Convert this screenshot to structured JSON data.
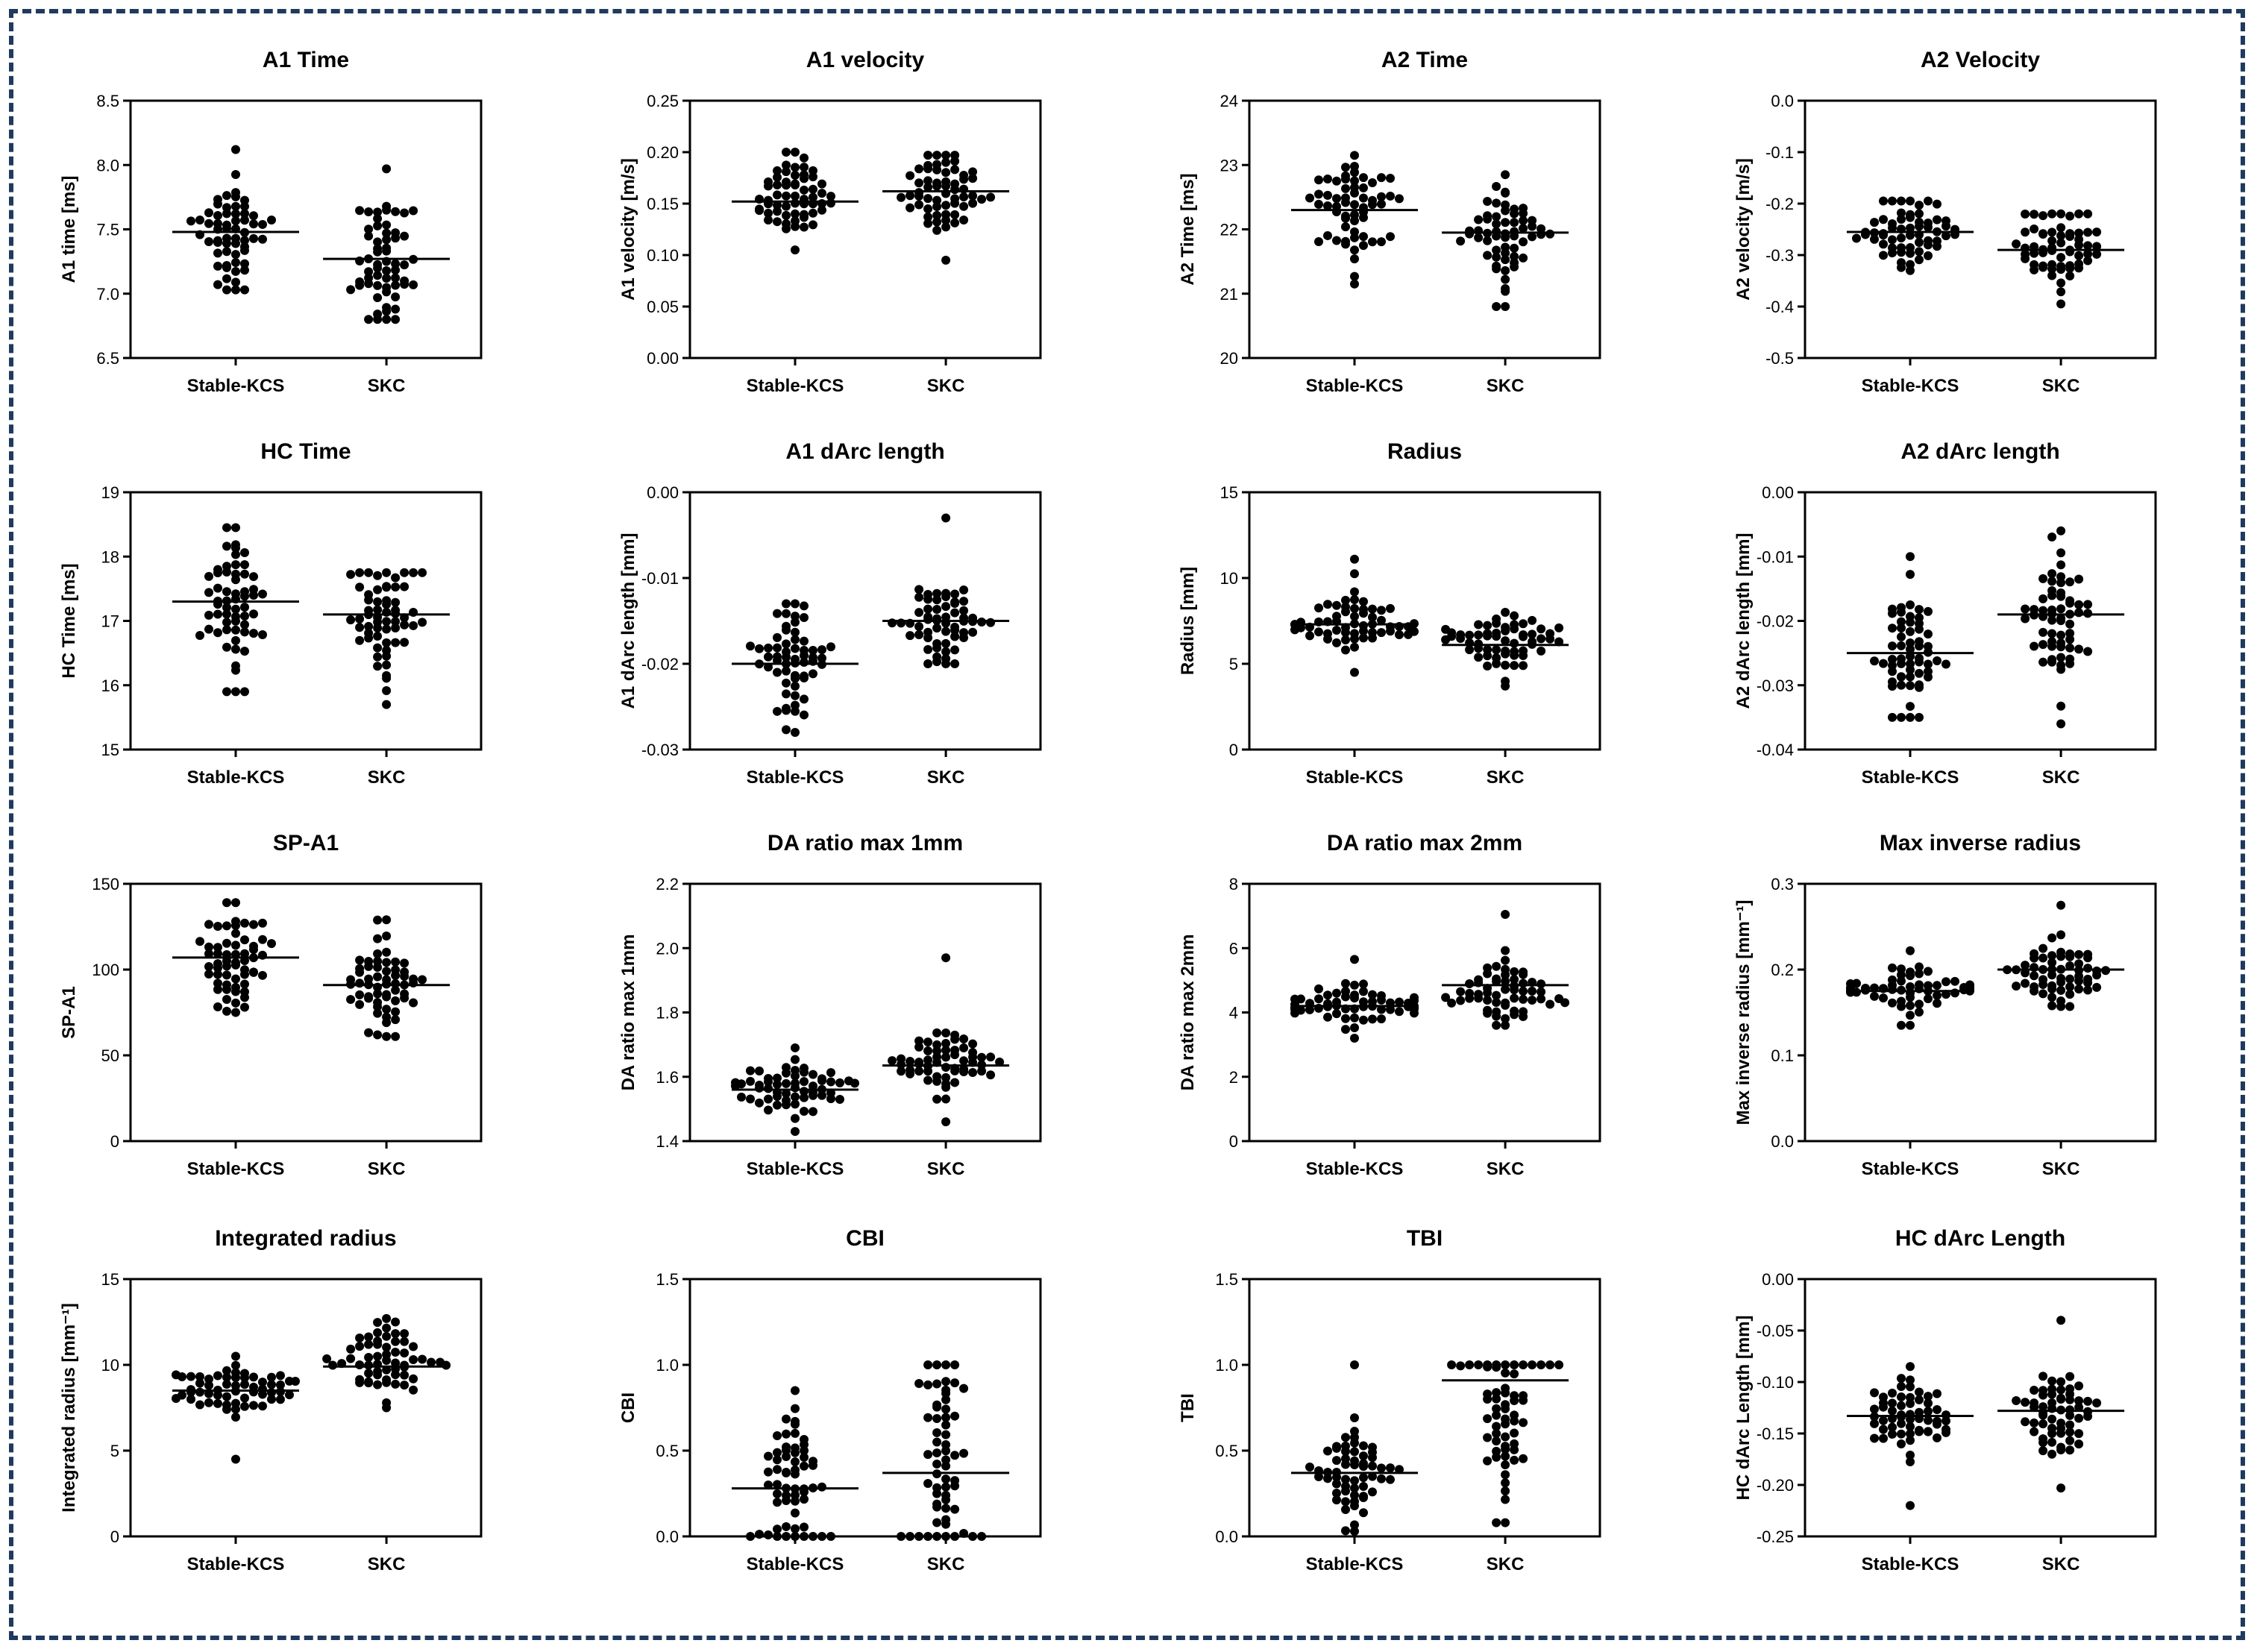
{
  "figure": {
    "border_color": "#1f3a5f",
    "dot_color": "#000000",
    "grid": false,
    "chart_type": "dot plot (scatter)"
  },
  "chart_data": [
    {
      "type": "scatter",
      "title": "A1 Time",
      "ylabel": "A1 time [ms]",
      "categories": [
        "Stable-KCS",
        "SKC"
      ],
      "ylim": [
        6.5,
        8.5
      ],
      "yticks": [
        "6.5",
        "7.0",
        "7.5",
        "8.0",
        "8.5"
      ],
      "series": [
        {
          "name": "Stable-KCS",
          "median": 7.48,
          "center": 7.48,
          "spread": 0.22,
          "min": 7.03,
          "max": 8.12,
          "n": 60
        },
        {
          "name": "SKC",
          "median": 7.27,
          "center": 7.27,
          "spread": 0.25,
          "min": 6.8,
          "max": 7.97,
          "n": 60
        }
      ]
    },
    {
      "type": "scatter",
      "title": "A1 velocity",
      "ylabel": "A1 velocity [m/s]",
      "categories": [
        "Stable-KCS",
        "SKC"
      ],
      "ylim": [
        0.0,
        0.25
      ],
      "yticks": [
        "0.00",
        "0.05",
        "0.10",
        "0.15",
        "0.20",
        "0.25"
      ],
      "series": [
        {
          "name": "Stable-KCS",
          "median": 0.152,
          "center": 0.152,
          "spread": 0.02,
          "min": 0.105,
          "max": 0.2,
          "n": 60
        },
        {
          "name": "SKC",
          "median": 0.162,
          "center": 0.162,
          "spread": 0.02,
          "min": 0.095,
          "max": 0.197,
          "n": 60
        }
      ]
    },
    {
      "type": "scatter",
      "title": "A2 Time",
      "ylabel": "A2 Time [ms]",
      "categories": [
        "Stable-KCS",
        "SKC"
      ],
      "ylim": [
        20,
        24
      ],
      "yticks": [
        "20",
        "21",
        "22",
        "23",
        "24"
      ],
      "series": [
        {
          "name": "Stable-KCS",
          "median": 22.3,
          "center": 22.3,
          "spread": 0.45,
          "min": 21.15,
          "max": 23.15,
          "n": 60
        },
        {
          "name": "SKC",
          "median": 21.95,
          "center": 21.95,
          "spread": 0.42,
          "min": 20.8,
          "max": 22.85,
          "n": 60
        }
      ]
    },
    {
      "type": "scatter",
      "title": "A2 Velocity",
      "ylabel": "A2 velocity [m/s]",
      "categories": [
        "Stable-KCS",
        "SKC"
      ],
      "ylim": [
        -0.5,
        0.0
      ],
      "yticks": [
        "-0.5",
        "-0.4",
        "-0.3",
        "-0.2",
        "-0.1",
        "0.0"
      ],
      "series": [
        {
          "name": "Stable-KCS",
          "median": -0.255,
          "center": -0.255,
          "spread": 0.03,
          "min": -0.33,
          "max": -0.195,
          "n": 60
        },
        {
          "name": "SKC",
          "median": -0.29,
          "center": -0.29,
          "spread": 0.04,
          "min": -0.395,
          "max": -0.22,
          "n": 60
        }
      ]
    },
    {
      "type": "scatter",
      "title": "HC Time",
      "ylabel": "HC Time [ms]",
      "categories": [
        "Stable-KCS",
        "SKC"
      ],
      "ylim": [
        15,
        19
      ],
      "yticks": [
        "15",
        "16",
        "17",
        "18",
        "19"
      ],
      "series": [
        {
          "name": "Stable-KCS",
          "median": 17.3,
          "center": 17.3,
          "spread": 0.5,
          "min": 15.9,
          "max": 18.45,
          "n": 60
        },
        {
          "name": "SKC",
          "median": 17.1,
          "center": 17.1,
          "spread": 0.45,
          "min": 15.7,
          "max": 17.75,
          "n": 60
        }
      ]
    },
    {
      "type": "scatter",
      "title": "A1 dArc length",
      "ylabel": "A1 dArc length [mm]",
      "categories": [
        "Stable-KCS",
        "SKC"
      ],
      "ylim": [
        -0.03,
        0.0
      ],
      "yticks": [
        "-0.03",
        "-0.02",
        "-0.01",
        "0.00"
      ],
      "series": [
        {
          "name": "Stable-KCS",
          "median": -0.02,
          "center": -0.02,
          "spread": 0.003,
          "min": -0.028,
          "max": -0.013,
          "n": 60
        },
        {
          "name": "SKC",
          "median": -0.015,
          "center": -0.015,
          "spread": 0.003,
          "min": -0.02,
          "max": -0.003,
          "n": 60
        }
      ]
    },
    {
      "type": "scatter",
      "title": "Radius",
      "ylabel": "Radius [mm]",
      "categories": [
        "Stable-KCS",
        "SKC"
      ],
      "ylim": [
        0,
        15
      ],
      "yticks": [
        "0",
        "5",
        "10",
        "15"
      ],
      "series": [
        {
          "name": "Stable-KCS",
          "median": 7.3,
          "center": 7.3,
          "spread": 0.9,
          "min": 4.5,
          "max": 11.1,
          "n": 60
        },
        {
          "name": "SKC",
          "median": 6.1,
          "center": 6.1,
          "spread": 0.8,
          "min": 3.7,
          "max": 8.0,
          "n": 60
        }
      ]
    },
    {
      "type": "scatter",
      "title": "A2 dArc length",
      "ylabel": "A2 dArc length [mm]",
      "categories": [
        "Stable-KCS",
        "SKC"
      ],
      "ylim": [
        -0.04,
        0.0
      ],
      "yticks": [
        "-0.04",
        "-0.03",
        "-0.02",
        "-0.01",
        "0.00"
      ],
      "series": [
        {
          "name": "Stable-KCS",
          "median": -0.025,
          "center": -0.025,
          "spread": 0.005,
          "min": -0.035,
          "max": -0.01,
          "n": 60
        },
        {
          "name": "SKC",
          "median": -0.019,
          "center": -0.019,
          "spread": 0.005,
          "min": -0.036,
          "max": -0.006,
          "n": 60
        }
      ]
    },
    {
      "type": "scatter",
      "title": "SP-A1",
      "ylabel": "SP-A1",
      "categories": [
        "Stable-KCS",
        "SKC"
      ],
      "ylim": [
        0,
        150
      ],
      "yticks": [
        "0",
        "50",
        "100",
        "150"
      ],
      "series": [
        {
          "name": "Stable-KCS",
          "median": 107,
          "center": 107,
          "spread": 14,
          "min": 75,
          "max": 139,
          "n": 60
        },
        {
          "name": "SKC",
          "median": 91,
          "center": 91,
          "spread": 12,
          "min": 61,
          "max": 129,
          "n": 60
        }
      ]
    },
    {
      "type": "scatter",
      "title": "DA ratio max 1mm",
      "ylabel": "DA ratio max 1mm",
      "categories": [
        "Stable-KCS",
        "SKC"
      ],
      "ylim": [
        1.4,
        2.2
      ],
      "yticks": [
        "1.4",
        "1.6",
        "1.8",
        "2.0",
        "2.2"
      ],
      "series": [
        {
          "name": "Stable-KCS",
          "median": 1.56,
          "center": 1.56,
          "spread": 0.04,
          "min": 1.43,
          "max": 1.69,
          "n": 60
        },
        {
          "name": "SKC",
          "median": 1.635,
          "center": 1.635,
          "spread": 0.05,
          "min": 1.46,
          "max": 1.97,
          "n": 60
        }
      ]
    },
    {
      "type": "scatter",
      "title": "DA ratio max 2mm",
      "ylabel": "DA ratio max 2mm",
      "categories": [
        "Stable-KCS",
        "SKC"
      ],
      "ylim": [
        0,
        8
      ],
      "yticks": [
        "0",
        "2",
        "4",
        "6",
        "8"
      ],
      "series": [
        {
          "name": "Stable-KCS",
          "median": 4.2,
          "center": 4.2,
          "spread": 0.4,
          "min": 3.2,
          "max": 5.65,
          "n": 60
        },
        {
          "name": "SKC",
          "median": 4.85,
          "center": 4.75,
          "spread": 0.55,
          "min": 3.6,
          "max": 7.05,
          "n": 60
        }
      ]
    },
    {
      "type": "scatter",
      "title": "Max inverse radius",
      "ylabel": "Max inverse radius [mm⁻¹]",
      "categories": [
        "Stable-KCS",
        "SKC"
      ],
      "ylim": [
        0.0,
        0.3
      ],
      "yticks": [
        "0.0",
        "0.1",
        "0.2",
        "0.3"
      ],
      "series": [
        {
          "name": "Stable-KCS",
          "median": 0.175,
          "center": 0.175,
          "spread": 0.015,
          "min": 0.135,
          "max": 0.222,
          "n": 60
        },
        {
          "name": "SKC",
          "median": 0.2,
          "center": 0.2,
          "spread": 0.017,
          "min": 0.157,
          "max": 0.275,
          "n": 60
        }
      ]
    },
    {
      "type": "scatter",
      "title": "Integrated radius",
      "ylabel": "Integrated radius [mm⁻¹]",
      "categories": [
        "Stable-KCS",
        "SKC"
      ],
      "ylim": [
        0,
        15
      ],
      "yticks": [
        "0",
        "5",
        "10",
        "15"
      ],
      "series": [
        {
          "name": "Stable-KCS",
          "median": 8.5,
          "center": 8.5,
          "spread": 0.8,
          "min": 4.5,
          "max": 10.5,
          "n": 60
        },
        {
          "name": "SKC",
          "median": 9.9,
          "center": 9.9,
          "spread": 1.1,
          "min": 7.5,
          "max": 12.7,
          "n": 60
        }
      ]
    },
    {
      "type": "scatter",
      "title": "CBI",
      "ylabel": "CBI",
      "categories": [
        "Stable-KCS",
        "SKC"
      ],
      "ylim": [
        0.0,
        1.5
      ],
      "yticks": [
        "0.0",
        "0.5",
        "1.0",
        "1.5"
      ],
      "series": [
        {
          "name": "Stable-KCS",
          "median": 0.28,
          "center": 0.3,
          "spread": 0.2,
          "min": 0.0,
          "max": 0.85,
          "n": 60
        },
        {
          "name": "SKC",
          "median": 0.37,
          "center": 0.4,
          "spread": 0.35,
          "min": 0.0,
          "max": 1.0,
          "n": 60
        }
      ]
    },
    {
      "type": "scatter",
      "title": "TBI",
      "ylabel": "TBI",
      "categories": [
        "Stable-KCS",
        "SKC"
      ],
      "ylim": [
        0.0,
        1.5
      ],
      "yticks": [
        "0.0",
        "0.5",
        "1.0",
        "1.5"
      ],
      "series": [
        {
          "name": "Stable-KCS",
          "median": 0.37,
          "center": 0.37,
          "spread": 0.15,
          "min": 0.03,
          "max": 1.0,
          "n": 60
        },
        {
          "name": "SKC",
          "median": 0.91,
          "center": 0.7,
          "spread": 0.3,
          "min": 0.08,
          "max": 1.0,
          "n": 60
        }
      ]
    },
    {
      "type": "scatter",
      "title": "HC dArc Length",
      "ylabel": "HC dArc Length [mm]",
      "categories": [
        "Stable-KCS",
        "SKC"
      ],
      "ylim": [
        -0.25,
        0.0
      ],
      "yticks": [
        "-0.25",
        "-0.20",
        "-0.15",
        "-0.10",
        "-0.05",
        "0.00"
      ],
      "series": [
        {
          "name": "Stable-KCS",
          "median": -0.133,
          "center": -0.133,
          "spread": 0.017,
          "min": -0.22,
          "max": -0.085,
          "n": 60
        },
        {
          "name": "SKC",
          "median": -0.128,
          "center": -0.128,
          "spread": 0.02,
          "min": -0.203,
          "max": -0.04,
          "n": 60
        }
      ]
    }
  ]
}
